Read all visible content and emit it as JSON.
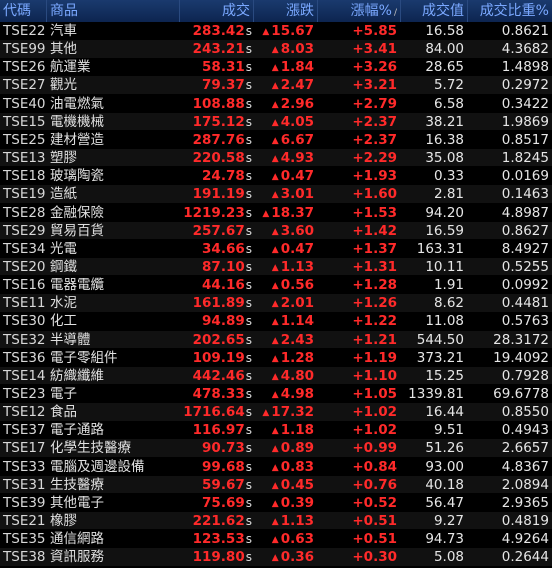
{
  "header": {
    "code": "代碼",
    "name": "商品",
    "price": "成交",
    "change": "漲跌",
    "pct": "漲幅%",
    "sort_mark": "/",
    "value": "成交值",
    "ratio": "成交比重%"
  },
  "rows": [
    {
      "code": "TSE22",
      "name": "汽車",
      "price": "283.42",
      "suffix": "s",
      "change": "15.67",
      "pct": "+5.85",
      "value": "16.58",
      "ratio": "0.8621"
    },
    {
      "code": "TSE99",
      "name": "其他",
      "price": "243.21",
      "suffix": "s",
      "change": "8.03",
      "pct": "+3.41",
      "value": "84.00",
      "ratio": "4.3682"
    },
    {
      "code": "TSE26",
      "name": "航運業",
      "price": "58.31",
      "suffix": "s",
      "change": "1.84",
      "pct": "+3.26",
      "value": "28.65",
      "ratio": "1.4898"
    },
    {
      "code": "TSE27",
      "name": "觀光",
      "price": "79.37",
      "suffix": "s",
      "change": "2.47",
      "pct": "+3.21",
      "value": "5.72",
      "ratio": "0.2972"
    },
    {
      "code": "TSE40",
      "name": "油電燃氣",
      "price": "108.88",
      "suffix": "s",
      "change": "2.96",
      "pct": "+2.79",
      "value": "6.58",
      "ratio": "0.3422"
    },
    {
      "code": "TSE15",
      "name": "電機機械",
      "price": "175.12",
      "suffix": "s",
      "change": "4.05",
      "pct": "+2.37",
      "value": "38.21",
      "ratio": "1.9869"
    },
    {
      "code": "TSE25",
      "name": "建材營造",
      "price": "287.76",
      "suffix": "s",
      "change": "6.67",
      "pct": "+2.37",
      "value": "16.38",
      "ratio": "0.8517"
    },
    {
      "code": "TSE13",
      "name": "塑膠",
      "price": "220.58",
      "suffix": "s",
      "change": "4.93",
      "pct": "+2.29",
      "value": "35.08",
      "ratio": "1.8245"
    },
    {
      "code": "TSE18",
      "name": "玻璃陶瓷",
      "price": "24.78",
      "suffix": "s",
      "change": "0.47",
      "pct": "+1.93",
      "value": "0.33",
      "ratio": "0.0169"
    },
    {
      "code": "TSE19",
      "name": "造紙",
      "price": "191.19",
      "suffix": "s",
      "change": "3.01",
      "pct": "+1.60",
      "value": "2.81",
      "ratio": "0.1463"
    },
    {
      "code": "TSE28",
      "name": "金融保險",
      "price": "1219.23",
      "suffix": "s",
      "change": "18.37",
      "pct": "+1.53",
      "value": "94.20",
      "ratio": "4.8987"
    },
    {
      "code": "TSE29",
      "name": "貿易百貨",
      "price": "257.67",
      "suffix": "s",
      "change": "3.60",
      "pct": "+1.42",
      "value": "16.59",
      "ratio": "0.8627"
    },
    {
      "code": "TSE34",
      "name": "光電",
      "price": "34.66",
      "suffix": "s",
      "change": "0.47",
      "pct": "+1.37",
      "value": "163.31",
      "ratio": "8.4927"
    },
    {
      "code": "TSE20",
      "name": "鋼鐵",
      "price": "87.10",
      "suffix": "s",
      "change": "1.13",
      "pct": "+1.31",
      "value": "10.11",
      "ratio": "0.5255"
    },
    {
      "code": "TSE16",
      "name": "電器電纜",
      "price": "44.16",
      "suffix": "s",
      "change": "0.56",
      "pct": "+1.28",
      "value": "1.91",
      "ratio": "0.0992"
    },
    {
      "code": "TSE11",
      "name": "水泥",
      "price": "161.89",
      "suffix": "s",
      "change": "2.01",
      "pct": "+1.26",
      "value": "8.62",
      "ratio": "0.4481"
    },
    {
      "code": "TSE30",
      "name": "化工",
      "price": "94.89",
      "suffix": "s",
      "change": "1.14",
      "pct": "+1.22",
      "value": "11.08",
      "ratio": "0.5763"
    },
    {
      "code": "TSE32",
      "name": "半導體",
      "price": "202.65",
      "suffix": "s",
      "change": "2.43",
      "pct": "+1.21",
      "value": "544.50",
      "ratio": "28.3172"
    },
    {
      "code": "TSE36",
      "name": "電子零組件",
      "price": "109.19",
      "suffix": "s",
      "change": "1.28",
      "pct": "+1.19",
      "value": "373.21",
      "ratio": "19.4092"
    },
    {
      "code": "TSE14",
      "name": "紡織纖維",
      "price": "442.46",
      "suffix": "s",
      "change": "4.80",
      "pct": "+1.10",
      "value": "15.25",
      "ratio": "0.7928"
    },
    {
      "code": "TSE23",
      "name": "電子",
      "price": "478.33",
      "suffix": "s",
      "change": "4.98",
      "pct": "+1.05",
      "value": "1339.81",
      "ratio": "69.6778"
    },
    {
      "code": "TSE12",
      "name": "食品",
      "price": "1716.64",
      "suffix": "s",
      "change": "17.32",
      "pct": "+1.02",
      "value": "16.44",
      "ratio": "0.8550"
    },
    {
      "code": "TSE37",
      "name": "電子通路",
      "price": "116.97",
      "suffix": "s",
      "change": "1.18",
      "pct": "+1.02",
      "value": "9.51",
      "ratio": "0.4943"
    },
    {
      "code": "TSE17",
      "name": "化學生技醫療",
      "price": "90.73",
      "suffix": "s",
      "change": "0.89",
      "pct": "+0.99",
      "value": "51.26",
      "ratio": "2.6657"
    },
    {
      "code": "TSE33",
      "name": "電腦及週邊設備",
      "price": "99.68",
      "suffix": "s",
      "change": "0.83",
      "pct": "+0.84",
      "value": "93.00",
      "ratio": "4.8367"
    },
    {
      "code": "TSE31",
      "name": "生技醫療",
      "price": "59.67",
      "suffix": "s",
      "change": "0.45",
      "pct": "+0.76",
      "value": "40.18",
      "ratio": "2.0894"
    },
    {
      "code": "TSE39",
      "name": "其他電子",
      "price": "75.69",
      "suffix": "s",
      "change": "0.39",
      "pct": "+0.52",
      "value": "56.47",
      "ratio": "2.9365"
    },
    {
      "code": "TSE21",
      "name": "橡膠",
      "price": "221.62",
      "suffix": "s",
      "change": "1.13",
      "pct": "+0.51",
      "value": "9.27",
      "ratio": "0.4819"
    },
    {
      "code": "TSE35",
      "name": "通信網路",
      "price": "123.53",
      "suffix": "s",
      "change": "0.63",
      "pct": "+0.51",
      "value": "94.73",
      "ratio": "4.9264"
    },
    {
      "code": "TSE38",
      "name": "資訊服務",
      "price": "119.80",
      "suffix": "s",
      "change": "0.36",
      "pct": "+0.30",
      "value": "5.08",
      "ratio": "0.2644"
    }
  ],
  "icons": {
    "up": "up-triangle-icon"
  },
  "colors": {
    "up": "#ff2a2a",
    "header_text": "#7aa8ff",
    "header_bg": "#0d2550"
  }
}
